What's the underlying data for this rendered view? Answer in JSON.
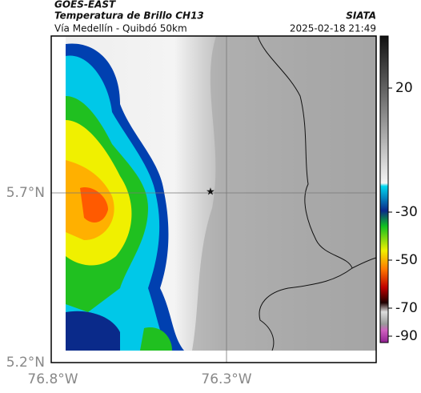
{
  "header": {
    "title": "GOES-EAST",
    "subtitle": "Temperatura de Brillo CH13",
    "location": "Vía Medellín - Quibdó 50km",
    "source": "SIATA",
    "datetime": "2025-02-18 21:49"
  },
  "map": {
    "lat_ticks": [
      "5.7°N",
      "5.2°N"
    ],
    "lon_ticks": [
      "76.8°W",
      "76.3°W"
    ]
  },
  "colorbar": {
    "ticks": [
      "20",
      "-30",
      "-50",
      "-70",
      "-90"
    ]
  }
}
